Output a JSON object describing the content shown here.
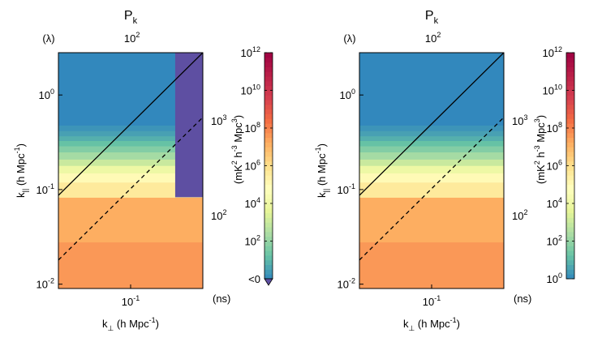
{
  "chart_data": [
    {
      "type": "heatmap",
      "title": "P",
      "title_subscript": "k",
      "xlabel": "k",
      "xlabel_subscript": "⊥",
      "xlabel_units": " (h Mpc",
      "ylabel": "k",
      "ylabel_subscript": "||",
      "ylabel_units": " (h Mpc",
      "unit_exponent": "-1",
      "x_scale": "log",
      "y_scale": "log",
      "xlim": [
        0.02,
        0.5
      ],
      "ylim": [
        0.009,
        2.8
      ],
      "x_ticks": [
        {
          "value": 0.1,
          "base": "10",
          "exp": "-1"
        }
      ],
      "y_ticks": [
        {
          "value": 1,
          "base": "10",
          "exp": "0"
        },
        {
          "value": 0.1,
          "base": "10",
          "exp": "-1"
        },
        {
          "value": 0.01,
          "base": "10",
          "exp": "-2"
        }
      ],
      "top_axis": {
        "label": "(λ)",
        "ticks": [
          {
            "value": 100,
            "base": "10",
            "exp": "2"
          }
        ]
      },
      "right_axis": {
        "label": "(ns)",
        "ticks": [
          {
            "value": 1000,
            "base": "10",
            "exp": "3"
          },
          {
            "value": 100,
            "base": "10",
            "exp": "2"
          }
        ]
      },
      "rows": [
        {
          "k_par_lo": 0.009,
          "k_par_hi": 0.028,
          "log_power": 7.6
        },
        {
          "k_par_lo": 0.028,
          "k_par_hi": 0.083,
          "log_power": 7.2
        },
        {
          "k_par_lo": 0.083,
          "k_par_hi": 0.12,
          "log_power": 5.6
        },
        {
          "k_par_lo": 0.12,
          "k_par_hi": 0.15,
          "log_power": 5.0
        },
        {
          "k_par_lo": 0.15,
          "k_par_hi": 0.18,
          "log_power": 4.0
        },
        {
          "k_par_lo": 0.18,
          "k_par_hi": 0.21,
          "log_power": 3.0
        },
        {
          "k_par_lo": 0.21,
          "k_par_hi": 0.25,
          "log_power": 2.3
        },
        {
          "k_par_lo": 0.25,
          "k_par_hi": 0.29,
          "log_power": 1.7
        },
        {
          "k_par_lo": 0.29,
          "k_par_hi": 0.33,
          "log_power": 1.2
        },
        {
          "k_par_lo": 0.33,
          "k_par_hi": 0.37,
          "log_power": 0.8
        },
        {
          "k_par_lo": 0.37,
          "k_par_hi": 0.42,
          "log_power": 0.5
        },
        {
          "k_par_lo": 0.42,
          "k_par_hi": 0.48,
          "log_power": 0.25
        },
        {
          "k_par_lo": 0.48,
          "k_par_hi": 2.8,
          "log_power": 0.0
        }
      ],
      "negative_region": {
        "k_perp_min": 0.27,
        "k_par_min": 0.083,
        "label": "<0"
      },
      "horizon_line": {
        "style": "solid",
        "k_perp": [
          0.02,
          0.5
        ],
        "k_par": [
          0.087,
          2.8
        ]
      },
      "buffer_line": {
        "style": "dashed",
        "k_perp": [
          0.02,
          0.5
        ],
        "k_par": [
          0.018,
          0.58
        ]
      },
      "colorbar": {
        "scale": "log",
        "range_exp": [
          0,
          12
        ],
        "ticks": [
          {
            "value": 0,
            "base": "10",
            "exp": "0",
            "text": "<0"
          },
          {
            "value": 2,
            "base": "10",
            "exp": "2"
          },
          {
            "value": 4,
            "base": "10",
            "exp": "4"
          },
          {
            "value": 6,
            "base": "10",
            "exp": "6"
          },
          {
            "value": 8,
            "base": "10",
            "exp": "8"
          },
          {
            "value": 10,
            "base": "10",
            "exp": "10"
          },
          {
            "value": 12,
            "base": "10",
            "exp": "12"
          }
        ],
        "label_parts": [
          "(mK",
          "2",
          " h",
          "-3",
          " Mpc",
          "3",
          ")"
        ],
        "extend": "min",
        "extend_color": "#5e4fa2"
      }
    },
    {
      "type": "heatmap",
      "title": "P",
      "title_subscript": "k",
      "xlabel": "k",
      "xlabel_subscript": "⊥",
      "xlabel_units": " (h Mpc",
      "ylabel": "k",
      "ylabel_subscript": "||",
      "ylabel_units": " (h Mpc",
      "unit_exponent": "-1",
      "x_scale": "log",
      "y_scale": "log",
      "xlim": [
        0.02,
        0.5
      ],
      "ylim": [
        0.009,
        2.8
      ],
      "x_ticks": [
        {
          "value": 0.1,
          "base": "10",
          "exp": "-1"
        }
      ],
      "y_ticks": [
        {
          "value": 1,
          "base": "10",
          "exp": "0"
        },
        {
          "value": 0.1,
          "base": "10",
          "exp": "-1"
        },
        {
          "value": 0.01,
          "base": "10",
          "exp": "-2"
        }
      ],
      "top_axis": {
        "label": "(λ)",
        "ticks": [
          {
            "value": 100,
            "base": "10",
            "exp": "2"
          }
        ]
      },
      "right_axis": {
        "label": "(ns)",
        "ticks": [
          {
            "value": 1000,
            "base": "10",
            "exp": "3"
          },
          {
            "value": 100,
            "base": "10",
            "exp": "2"
          }
        ]
      },
      "rows": [
        {
          "k_par_lo": 0.009,
          "k_par_hi": 0.028,
          "log_power": 7.6
        },
        {
          "k_par_lo": 0.028,
          "k_par_hi": 0.083,
          "log_power": 7.2
        },
        {
          "k_par_lo": 0.083,
          "k_par_hi": 0.12,
          "log_power": 5.6
        },
        {
          "k_par_lo": 0.12,
          "k_par_hi": 0.15,
          "log_power": 5.0
        },
        {
          "k_par_lo": 0.15,
          "k_par_hi": 0.18,
          "log_power": 4.0
        },
        {
          "k_par_lo": 0.18,
          "k_par_hi": 0.21,
          "log_power": 3.0
        },
        {
          "k_par_lo": 0.21,
          "k_par_hi": 0.25,
          "log_power": 2.3
        },
        {
          "k_par_lo": 0.25,
          "k_par_hi": 0.29,
          "log_power": 1.7
        },
        {
          "k_par_lo": 0.29,
          "k_par_hi": 0.33,
          "log_power": 1.2
        },
        {
          "k_par_lo": 0.33,
          "k_par_hi": 0.37,
          "log_power": 0.8
        },
        {
          "k_par_lo": 0.37,
          "k_par_hi": 0.42,
          "log_power": 0.5
        },
        {
          "k_par_lo": 0.42,
          "k_par_hi": 0.48,
          "log_power": 0.25
        },
        {
          "k_par_lo": 0.48,
          "k_par_hi": 2.8,
          "log_power": 0.0
        }
      ],
      "negative_region": null,
      "horizon_line": {
        "style": "solid",
        "k_perp": [
          0.02,
          0.5
        ],
        "k_par": [
          0.087,
          2.8
        ]
      },
      "buffer_line": {
        "style": "dashed",
        "k_perp": [
          0.02,
          0.5
        ],
        "k_par": [
          0.018,
          0.58
        ]
      },
      "colorbar": {
        "scale": "log",
        "range_exp": [
          0,
          12
        ],
        "ticks": [
          {
            "value": 0,
            "base": "10",
            "exp": "0"
          },
          {
            "value": 2,
            "base": "10",
            "exp": "2"
          },
          {
            "value": 4,
            "base": "10",
            "exp": "4"
          },
          {
            "value": 6,
            "base": "10",
            "exp": "6"
          },
          {
            "value": 8,
            "base": "10",
            "exp": "8"
          },
          {
            "value": 10,
            "base": "10",
            "exp": "10"
          },
          {
            "value": 12,
            "base": "10",
            "exp": "12"
          }
        ],
        "label_parts": [
          "(mK",
          "2",
          " h",
          "-3",
          " Mpc",
          "3",
          ")"
        ],
        "extend": "none",
        "extend_color": ""
      }
    }
  ]
}
